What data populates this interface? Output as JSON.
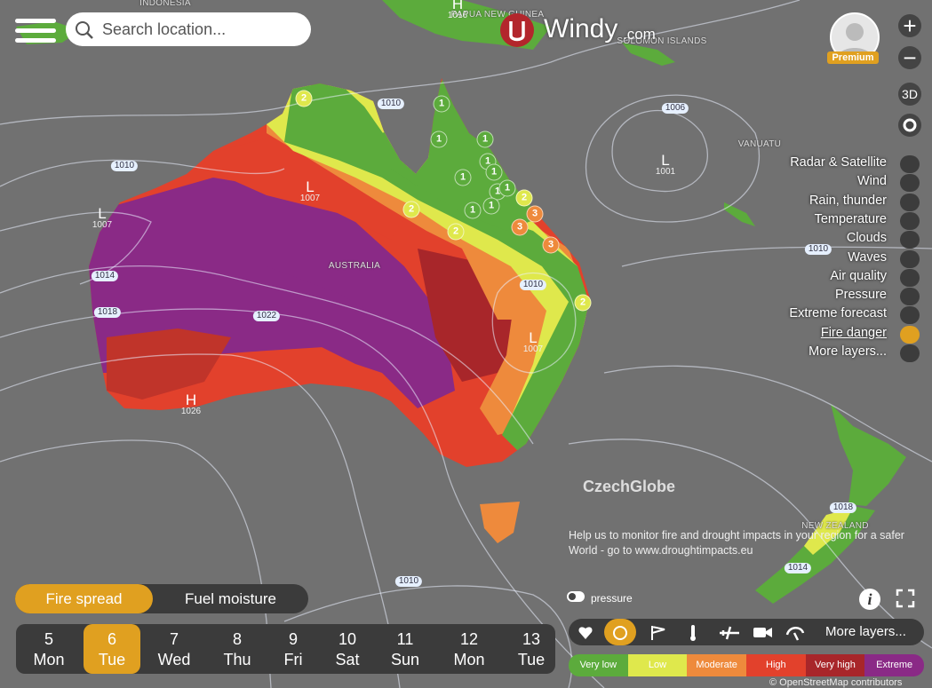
{
  "search": {
    "placeholder": "Search location..."
  },
  "logo": {
    "name": "Windy",
    "suffix": ".com"
  },
  "account": {
    "label": "Premium"
  },
  "map_controls": {
    "zoom_in": "+",
    "zoom_out": "−",
    "view_3d": "3D"
  },
  "layers_menu": {
    "items": [
      "Radar & Satellite",
      "Wind",
      "Rain, thunder",
      "Temperature",
      "Clouds",
      "Waves",
      "Air quality",
      "Pressure",
      "Extreme forecast",
      "Fire danger",
      "More layers..."
    ],
    "active_index": 9
  },
  "map_labels": {
    "regions": [
      "INDONESIA",
      "PAPUA NEW GUINEA",
      "SOLOMON ISLANDS",
      "VANUATU",
      "AUSTRALIA",
      "NEW ZEALAND"
    ],
    "pressure_centers": [
      {
        "type": "H",
        "pressure": 1016
      },
      {
        "type": "L",
        "pressure": 1007
      },
      {
        "type": "L",
        "pressure": 1007
      },
      {
        "type": "L",
        "pressure": 1001
      },
      {
        "type": "L",
        "pressure": 1007
      },
      {
        "type": "H",
        "pressure": 1026
      }
    ],
    "isobars": [
      1010,
      1006,
      1010,
      1014,
      1018,
      1022,
      1010,
      1010,
      1018,
      1014,
      1010
    ],
    "fire_danger_markers": [
      2,
      1,
      1,
      1,
      1,
      1,
      1,
      1,
      1,
      1,
      1,
      2,
      2,
      2,
      3,
      3,
      3,
      2
    ]
  },
  "attribution": {
    "brand": "CzechGlobe",
    "message": "Help us to monitor fire and drought impacts in your region for a safer World - go to www.droughtimpacts.eu",
    "osm": "© OpenStreetMap contributors"
  },
  "mode_tabs": {
    "tabs": [
      "Fire spread",
      "Fuel moisture"
    ],
    "active_index": 0
  },
  "timeline": {
    "days": [
      {
        "date": 5,
        "weekday": "Mon"
      },
      {
        "date": 6,
        "weekday": "Tue"
      },
      {
        "date": 7,
        "weekday": "Wed"
      },
      {
        "date": 8,
        "weekday": "Thu"
      },
      {
        "date": 9,
        "weekday": "Fri"
      },
      {
        "date": 10,
        "weekday": "Sat"
      },
      {
        "date": 11,
        "weekday": "Sun"
      },
      {
        "date": 12,
        "weekday": "Mon"
      },
      {
        "date": 13,
        "weekday": "Tue"
      }
    ],
    "active_index": 1
  },
  "overlay_toggle": {
    "label": "pressure"
  },
  "quick_layers": {
    "more": "More layers..."
  },
  "info_button": "i",
  "legend": {
    "levels": [
      {
        "label": "Very low",
        "color": "#5cab3c"
      },
      {
        "label": "Low",
        "color": "#dfe84c"
      },
      {
        "label": "Moderate",
        "color": "#ee8a3c"
      },
      {
        "label": "High",
        "color": "#e2412c"
      },
      {
        "label": "Very high",
        "color": "#a8262a"
      },
      {
        "label": "Extreme",
        "color": "#8a2a86"
      }
    ]
  }
}
